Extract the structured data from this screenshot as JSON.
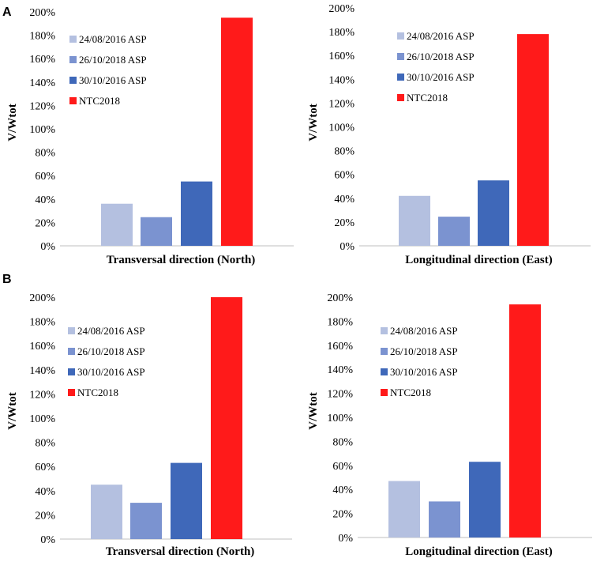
{
  "panel_labels": [
    "A",
    "B"
  ],
  "colors": {
    "24/08/2016 ASP": "#b4c0e0",
    "26/10/2018 ASP": "#7b93d0",
    "30/10/2016 ASP": "#3f68b9",
    "NTC2018": "#ff1a1a"
  },
  "chart_data": [
    {
      "type": "bar",
      "panel": "A",
      "title": "",
      "xlabel": "Transversal direction (North)",
      "ylabel": "V/Wtot",
      "ylim": [
        0,
        200
      ],
      "yticks": [
        "0%",
        "20%",
        "40%",
        "60%",
        "80%",
        "100%",
        "120%",
        "140%",
        "160%",
        "180%",
        "200%"
      ],
      "legend": [
        "24/08/2016 ASP",
        "26/10/2018 ASP",
        "30/10/2016 ASP",
        "NTC2018"
      ],
      "series": [
        {
          "name": "24/08/2016 ASP",
          "values": [
            36
          ]
        },
        {
          "name": "26/10/2018 ASP",
          "values": [
            24.5
          ]
        },
        {
          "name": "30/10/2016 ASP",
          "values": [
            55
          ]
        },
        {
          "name": "NTC2018",
          "values": [
            195
          ]
        }
      ]
    },
    {
      "type": "bar",
      "panel": "A",
      "title": "",
      "xlabel": "Longitudinal direction (East)",
      "ylabel": "V/Wtot",
      "ylim": [
        0,
        200
      ],
      "yticks": [
        "0%",
        "20%",
        "40%",
        "60%",
        "80%",
        "100%",
        "120%",
        "140%",
        "160%",
        "180%",
        "200%"
      ],
      "legend": [
        "24/08/2016 ASP",
        "26/10/2018 ASP",
        "30/10/2016 ASP",
        "NTC2018"
      ],
      "series": [
        {
          "name": "24/08/2016 ASP",
          "values": [
            42
          ]
        },
        {
          "name": "26/10/2018 ASP",
          "values": [
            24.5
          ]
        },
        {
          "name": "30/10/2016 ASP",
          "values": [
            55
          ]
        },
        {
          "name": "NTC2018",
          "values": [
            178
          ]
        }
      ]
    },
    {
      "type": "bar",
      "panel": "B",
      "title": "",
      "xlabel": "Transversal direction (North)",
      "ylabel": "V/Wtot",
      "ylim": [
        0,
        200
      ],
      "yticks": [
        "0%",
        "20%",
        "40%",
        "60%",
        "80%",
        "100%",
        "120%",
        "140%",
        "160%",
        "180%",
        "200%"
      ],
      "legend": [
        "24/08/2016 ASP",
        "26/10/2018 ASP",
        "30/10/2016 ASP",
        "NTC2018"
      ],
      "series": [
        {
          "name": "24/08/2016 ASP",
          "values": [
            45
          ]
        },
        {
          "name": "26/10/2018 ASP",
          "values": [
            30
          ]
        },
        {
          "name": "30/10/2016 ASP",
          "values": [
            63
          ]
        },
        {
          "name": "NTC2018",
          "values": [
            200
          ]
        }
      ]
    },
    {
      "type": "bar",
      "panel": "B",
      "title": "",
      "xlabel": "Longitudinal direction (East)",
      "ylabel": "V/Wtot",
      "ylim": [
        0,
        200
      ],
      "yticks": [
        "0%",
        "20%",
        "40%",
        "60%",
        "80%",
        "100%",
        "120%",
        "140%",
        "160%",
        "180%",
        "200%"
      ],
      "legend": [
        "24/08/2016 ASP",
        "26/10/2018 ASP",
        "30/10/2016 ASP",
        "NTC2018"
      ],
      "series": [
        {
          "name": "24/08/2016 ASP",
          "values": [
            47
          ]
        },
        {
          "name": "26/10/2018 ASP",
          "values": [
            30
          ]
        },
        {
          "name": "30/10/2016 ASP",
          "values": [
            63
          ]
        },
        {
          "name": "NTC2018",
          "values": [
            194
          ]
        }
      ]
    }
  ]
}
